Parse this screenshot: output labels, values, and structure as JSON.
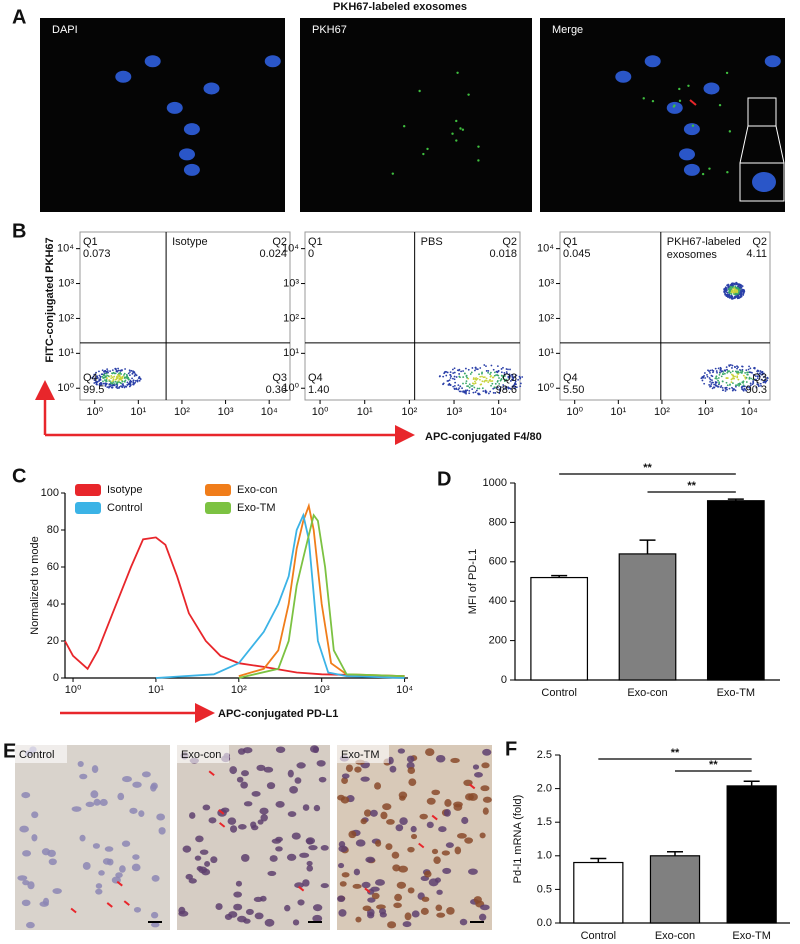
{
  "panels": {
    "A": {
      "label": "A",
      "title": "PKH67-labeled exosomes",
      "images": [
        "DAPI",
        "PKH67",
        "Merge"
      ]
    },
    "B": {
      "label": "B",
      "y_label": "FITC-conjugated PKH67",
      "x_label": "APC-conjugated F4/80",
      "lim": [
        0.46,
        30000
      ],
      "ticks": [
        {
          "value": 1,
          "label": "10⁰"
        },
        {
          "value": 10,
          "label": "10¹"
        },
        {
          "value": 100,
          "label": "10²"
        },
        {
          "value": 1000,
          "label": "10³"
        },
        {
          "value": 10000,
          "label": "10⁴"
        }
      ],
      "plots": [
        {
          "title": [
            "Isotype"
          ],
          "quadrants": [
            [
              "Q1",
              "0.073"
            ],
            [
              "Q2",
              "0.024"
            ],
            [
              "Q3",
              "0.36"
            ],
            [
              "Q4",
              "99.5"
            ]
          ]
        },
        {
          "title": [
            "PBS"
          ],
          "quadrants": [
            [
              "Q1",
              "0"
            ],
            [
              "Q2",
              "0.018"
            ],
            [
              "Q3",
              "98.6"
            ],
            [
              "Q4",
              "1.40"
            ]
          ]
        },
        {
          "title": [
            "PKH67-labeled",
            "exosomes"
          ],
          "quadrants": [
            [
              "Q1",
              "0.045"
            ],
            [
              "Q2",
              "4.11"
            ],
            [
              "Q3",
              "90.3"
            ],
            [
              "Q4",
              "5.50"
            ]
          ]
        }
      ]
    },
    "C": {
      "label": "C"
    },
    "D": {
      "label": "D"
    },
    "E": {
      "label": "E",
      "images": [
        "Control",
        "Exo-con",
        "Exo-TM"
      ]
    },
    "F": {
      "label": "F"
    }
  },
  "chart_data": [
    {
      "type": "line",
      "y_label": "Normalized to mode",
      "x_label": "APC-conjugated PD-L1",
      "log_x": true,
      "xlim": [
        0.8,
        11000
      ],
      "ylim": [
        0,
        100
      ],
      "xticks": [
        {
          "value": 1,
          "label": "10⁰"
        },
        {
          "value": 10,
          "label": "10¹"
        },
        {
          "value": 100,
          "label": "10²"
        },
        {
          "value": 1000,
          "label": "10³"
        },
        {
          "value": 10000,
          "label": "10⁴"
        }
      ],
      "yticks": [
        0,
        20,
        40,
        60,
        80,
        100
      ],
      "series": [
        {
          "name": "Isotype",
          "color": "#e8262b",
          "x": [
            0.8,
            1,
            1.5,
            2,
            3,
            5,
            7,
            10,
            13,
            18,
            25,
            40,
            60,
            100,
            200,
            500,
            1000,
            10000
          ],
          "values": [
            20,
            12,
            5,
            15,
            35,
            60,
            75,
            76,
            72,
            55,
            35,
            20,
            12,
            8,
            6,
            3,
            2,
            1
          ]
        },
        {
          "name": "Exo-con",
          "color": "#f07d1a",
          "x": [
            100,
            200,
            300,
            400,
            500,
            600,
            700,
            800,
            1000,
            1300,
            2000,
            10000
          ],
          "values": [
            1,
            5,
            15,
            40,
            70,
            85,
            93,
            80,
            40,
            8,
            2,
            1
          ]
        },
        {
          "name": "Control",
          "color": "#3bb3e6",
          "x": [
            10,
            50,
            100,
            200,
            300,
            400,
            500,
            600,
            700,
            900,
            1200,
            2000,
            10000
          ],
          "values": [
            0,
            2,
            8,
            25,
            40,
            55,
            80,
            88,
            75,
            20,
            3,
            1,
            0
          ]
        },
        {
          "name": "Exo-TM",
          "color": "#7cc242",
          "x": [
            100,
            300,
            400,
            500,
            600,
            800,
            900,
            1100,
            1400,
            2000,
            10000
          ],
          "values": [
            0,
            5,
            20,
            50,
            65,
            88,
            85,
            60,
            15,
            2,
            1
          ]
        }
      ]
    },
    {
      "type": "bar",
      "y_label": "MFI of PD-L1",
      "categories": [
        "Control",
        "Exo-con",
        "Exo-TM"
      ],
      "values": [
        520,
        640,
        910
      ],
      "errors": [
        10,
        70,
        8
      ],
      "colors": [
        "#ffffff",
        "#808080",
        "#000000"
      ],
      "ylim": [
        0,
        1000
      ],
      "yticks": [
        0,
        200,
        400,
        600,
        800,
        1000
      ],
      "annotations": [
        {
          "text": "**",
          "from": 0,
          "to": 2
        },
        {
          "text": "**",
          "from": 1,
          "to": 2
        }
      ]
    },
    {
      "type": "bar",
      "y_label": "Pd-l1 mRNA (fold)",
      "categories": [
        "Control",
        "Exo-con",
        "Exo-TM"
      ],
      "values": [
        0.9,
        1.0,
        2.04
      ],
      "errors": [
        0.06,
        0.06,
        0.07
      ],
      "colors": [
        "#ffffff",
        "#808080",
        "#000000"
      ],
      "ylim": [
        0,
        2.5
      ],
      "yticks": [
        {
          "value": 0,
          "label": "0.0"
        },
        0.5,
        {
          "value": 1,
          "label": "1.0"
        },
        1.5,
        {
          "value": 2,
          "label": "2.0"
        },
        2.5
      ],
      "annotations": [
        {
          "text": "**",
          "from": 0,
          "to": 2
        },
        {
          "text": "**",
          "from": 1,
          "to": 2
        }
      ]
    }
  ]
}
